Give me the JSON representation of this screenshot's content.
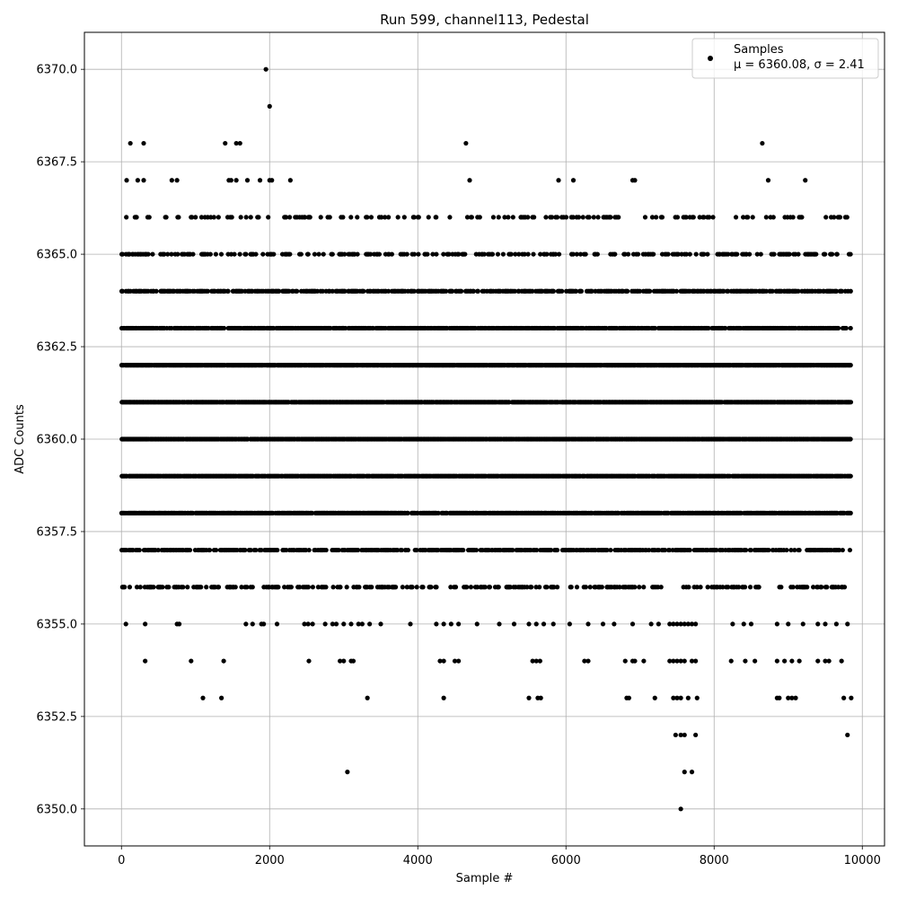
{
  "chart_data": {
    "type": "scatter",
    "title": "Run 599, channel113, Pedestal",
    "xlabel": "Sample #",
    "ylabel": "ADC Counts",
    "xlim": [
      -500,
      10300
    ],
    "ylim": [
      6349.0,
      6371.0
    ],
    "xticks": [
      0,
      2000,
      4000,
      6000,
      8000,
      10000
    ],
    "xtick_labels": [
      "0",
      "2000",
      "4000",
      "6000",
      "8000",
      "10000"
    ],
    "yticks": [
      6350.0,
      6352.5,
      6355.0,
      6357.5,
      6360.0,
      6362.5,
      6365.0,
      6367.5,
      6370.0
    ],
    "ytick_labels": [
      "6350.0",
      "6352.5",
      "6355.0",
      "6357.5",
      "6360.0",
      "6362.5",
      "6365.0",
      "6367.5",
      "6370.0"
    ],
    "grid": true,
    "legend": {
      "position": "top-right",
      "series_label": "Samples",
      "stats_label": "μ = 6360.08, σ = 2.41"
    },
    "marker_color": "#000000",
    "series": [
      {
        "name": "Samples",
        "points": [
          [
            1950,
            6370
          ],
          [
            2000,
            6369
          ],
          [
            120,
            6368
          ],
          [
            300,
            6368
          ],
          [
            1400,
            6368
          ],
          [
            1550,
            6368
          ],
          [
            1600,
            6368
          ],
          [
            4650,
            6368
          ],
          [
            8650,
            6368
          ],
          [
            70,
            6367
          ],
          [
            220,
            6367
          ],
          [
            300,
            6367
          ],
          [
            680,
            6367
          ],
          [
            750,
            6367
          ],
          [
            1450,
            6367
          ],
          [
            1480,
            6367
          ],
          [
            1550,
            6367
          ],
          [
            1700,
            6367
          ],
          [
            1870,
            6367
          ],
          [
            2000,
            6367
          ],
          [
            2030,
            6367
          ],
          [
            2280,
            6367
          ],
          [
            4700,
            6367
          ],
          [
            5900,
            6367
          ],
          [
            6100,
            6367
          ],
          [
            6900,
            6367
          ],
          [
            6930,
            6367
          ],
          [
            8730,
            6367
          ],
          [
            9230,
            6367
          ],
          [
            60,
            6355
          ],
          [
            320,
            6355
          ],
          [
            750,
            6355
          ],
          [
            780,
            6355
          ],
          [
            1680,
            6355
          ],
          [
            1770,
            6355
          ],
          [
            1890,
            6355
          ],
          [
            1920,
            6355
          ],
          [
            2100,
            6355
          ],
          [
            2470,
            6355
          ],
          [
            2520,
            6355
          ],
          [
            2580,
            6355
          ],
          [
            2750,
            6355
          ],
          [
            2850,
            6355
          ],
          [
            2900,
            6355
          ],
          [
            3000,
            6355
          ],
          [
            3100,
            6355
          ],
          [
            3200,
            6355
          ],
          [
            3250,
            6355
          ],
          [
            3350,
            6355
          ],
          [
            3500,
            6355
          ],
          [
            3900,
            6355
          ],
          [
            4250,
            6355
          ],
          [
            4350,
            6355
          ],
          [
            4450,
            6355
          ],
          [
            4550,
            6355
          ],
          [
            4800,
            6355
          ],
          [
            5100,
            6355
          ],
          [
            5300,
            6355
          ],
          [
            5500,
            6355
          ],
          [
            5600,
            6355
          ],
          [
            5700,
            6355
          ],
          [
            5830,
            6355
          ],
          [
            6050,
            6355
          ],
          [
            6300,
            6355
          ],
          [
            6500,
            6355
          ],
          [
            6650,
            6355
          ],
          [
            6900,
            6355
          ],
          [
            7150,
            6355
          ],
          [
            7250,
            6355
          ],
          [
            7400,
            6355
          ],
          [
            7450,
            6355
          ],
          [
            7500,
            6355
          ],
          [
            7550,
            6355
          ],
          [
            7600,
            6355
          ],
          [
            7650,
            6355
          ],
          [
            7700,
            6355
          ],
          [
            7750,
            6355
          ],
          [
            8250,
            6355
          ],
          [
            8400,
            6355
          ],
          [
            8500,
            6355
          ],
          [
            8850,
            6355
          ],
          [
            9000,
            6355
          ],
          [
            9200,
            6355
          ],
          [
            9400,
            6355
          ],
          [
            9500,
            6355
          ],
          [
            9650,
            6355
          ],
          [
            9800,
            6355
          ],
          [
            320,
            6354
          ],
          [
            940,
            6354
          ],
          [
            1380,
            6354
          ],
          [
            2530,
            6354
          ],
          [
            2950,
            6354
          ],
          [
            3000,
            6354
          ],
          [
            3100,
            6354
          ],
          [
            3130,
            6354
          ],
          [
            4300,
            6354
          ],
          [
            4350,
            6354
          ],
          [
            4500,
            6354
          ],
          [
            4550,
            6354
          ],
          [
            5550,
            6354
          ],
          [
            5600,
            6354
          ],
          [
            5650,
            6354
          ],
          [
            6250,
            6354
          ],
          [
            6300,
            6354
          ],
          [
            6800,
            6354
          ],
          [
            6900,
            6354
          ],
          [
            6930,
            6354
          ],
          [
            7050,
            6354
          ],
          [
            7400,
            6354
          ],
          [
            7450,
            6354
          ],
          [
            7500,
            6354
          ],
          [
            7550,
            6354
          ],
          [
            7600,
            6354
          ],
          [
            7700,
            6354
          ],
          [
            7750,
            6354
          ],
          [
            8230,
            6354
          ],
          [
            8420,
            6354
          ],
          [
            8550,
            6354
          ],
          [
            8850,
            6354
          ],
          [
            8950,
            6354
          ],
          [
            9050,
            6354
          ],
          [
            9150,
            6354
          ],
          [
            9400,
            6354
          ],
          [
            9500,
            6354
          ],
          [
            9550,
            6354
          ],
          [
            9720,
            6354
          ],
          [
            1100,
            6353
          ],
          [
            1350,
            6353
          ],
          [
            3320,
            6353
          ],
          [
            4350,
            6353
          ],
          [
            5500,
            6353
          ],
          [
            5620,
            6353
          ],
          [
            5660,
            6353
          ],
          [
            6820,
            6353
          ],
          [
            6850,
            6353
          ],
          [
            7200,
            6353
          ],
          [
            7450,
            6353
          ],
          [
            7500,
            6353
          ],
          [
            7550,
            6353
          ],
          [
            7650,
            6353
          ],
          [
            7770,
            6353
          ],
          [
            8850,
            6353
          ],
          [
            8880,
            6353
          ],
          [
            9000,
            6353
          ],
          [
            9050,
            6353
          ],
          [
            9100,
            6353
          ],
          [
            9750,
            6353
          ],
          [
            9850,
            6353
          ],
          [
            7480,
            6352
          ],
          [
            7550,
            6352
          ],
          [
            7600,
            6352
          ],
          [
            7750,
            6352
          ],
          [
            9800,
            6352
          ],
          [
            3050,
            6351
          ],
          [
            7600,
            6351
          ],
          [
            7700,
            6351
          ],
          [
            7550,
            6350
          ]
        ],
        "band_levels": [
          6356,
          6357,
          6358,
          6359,
          6360,
          6361,
          6362,
          6363,
          6364,
          6365,
          6366
        ]
      }
    ]
  }
}
